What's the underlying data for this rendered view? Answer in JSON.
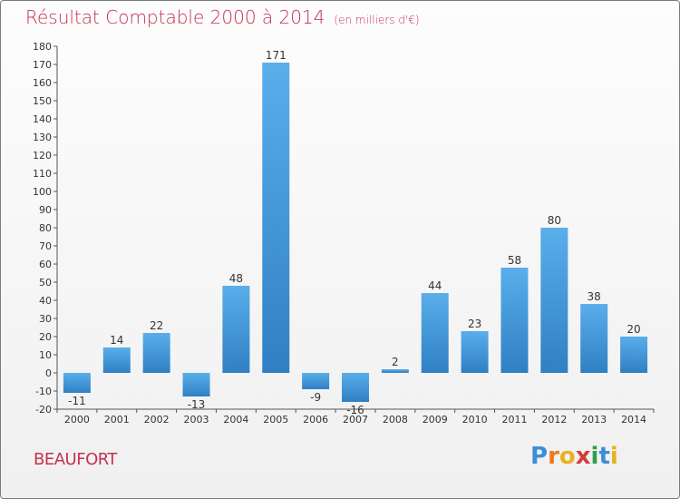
{
  "header": {
    "title": "Résultat Comptable 2000 à 2014",
    "subtitle": "(en milliers d'€)"
  },
  "commune": "BEAUFORT",
  "logo": {
    "letters": [
      "P",
      "r",
      "o",
      "x",
      "i",
      "t",
      "i"
    ],
    "colors": [
      "#3b8fd6",
      "#e87b1e",
      "#e8b21e",
      "#d63b3b",
      "#2e9e4f",
      "#3b8fd6",
      "#e8b21e"
    ]
  },
  "chart_data": {
    "type": "bar",
    "title": "Résultat Comptable 2000 à 2014",
    "categories": [
      "2000",
      "2001",
      "2002",
      "2003",
      "2004",
      "2005",
      "2006",
      "2007",
      "2008",
      "2009",
      "2010",
      "2011",
      "2012",
      "2013",
      "2014"
    ],
    "values": [
      -11,
      14,
      22,
      -13,
      48,
      171,
      -9,
      -16,
      2,
      44,
      23,
      58,
      80,
      38,
      20
    ],
    "value_labels": [
      "-11",
      "14",
      "22",
      "-13",
      "48",
      "171",
      "-9",
      "-16",
      "2",
      "44",
      "23",
      "58",
      "80",
      "38",
      "20"
    ],
    "ylim": [
      -20,
      180
    ],
    "yticks": [
      "-20",
      "-10",
      "0",
      "10",
      "20",
      "30",
      "40",
      "50",
      "60",
      "70",
      "80",
      "90",
      "100",
      "110",
      "120",
      "130",
      "140",
      "150",
      "160",
      "170",
      "180"
    ],
    "ytick_values": [
      -20,
      -10,
      0,
      10,
      20,
      30,
      40,
      50,
      60,
      70,
      80,
      90,
      100,
      110,
      120,
      130,
      140,
      150,
      160,
      170,
      180
    ],
    "grid": false,
    "bar_color_light": "#5aaeea",
    "bar_color_dark": "#2f80c4"
  }
}
